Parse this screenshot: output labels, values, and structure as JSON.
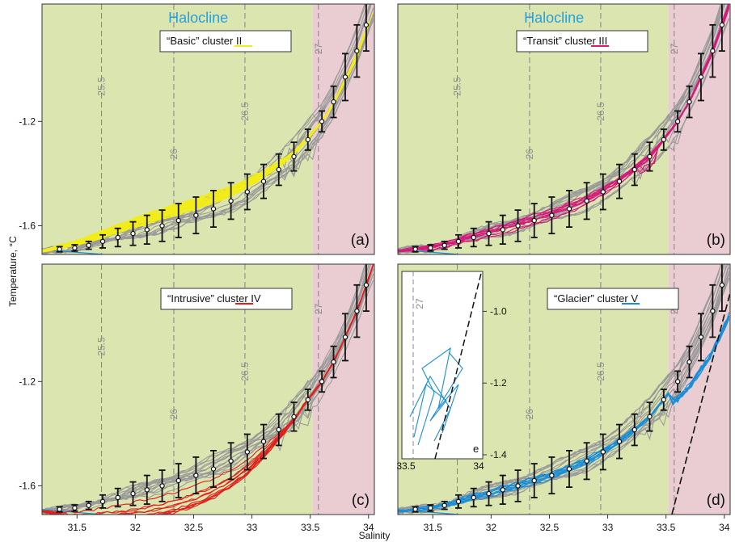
{
  "figure": {
    "xlabel": "Salinity",
    "ylabel": "Temperature, °C",
    "panel_titles": [
      "Halocline",
      "Halocline"
    ],
    "panel_tags": [
      "(a)",
      "(b)",
      "(c)",
      "(d)"
    ],
    "legends": [
      "“Basic” cluster II",
      "“Transit” cluster III",
      "“Intrusive” cluster IV",
      "“Glacier” cluster V"
    ],
    "inset_tag": "e",
    "colors": {
      "halocline_bg": "#dbe5b0",
      "deep_bg": "#e9cdd3",
      "background_profiles": "#9a9a9a",
      "mean_std": "#111111",
      "basic": "#f2ec18",
      "transit": "#d8197a",
      "intrusive": "#e0201c",
      "glacier": "#1a8fd8",
      "titles": "#2aa0d8"
    }
  },
  "chart_data": [
    {
      "type": "line",
      "panel": "(a)",
      "title": "Halocline",
      "legend": "“Basic” cluster II",
      "xlabel": "Salinity",
      "ylabel": "Temperature, °C",
      "xlim": [
        31.2,
        34.05
      ],
      "ylim": [
        -1.71,
        -0.75
      ],
      "xticks": [],
      "yticks": [
        -1.2,
        -1.6
      ],
      "highlight_color": "#f2ec18",
      "isopycnals": [
        "25.5",
        "26",
        "26.5",
        "27"
      ],
      "mean_profile": {
        "x": [
          31.35,
          31.48,
          31.6,
          31.72,
          31.85,
          31.98,
          32.1,
          32.23,
          32.37,
          32.52,
          32.67,
          32.82,
          32.96,
          33.1,
          33.23,
          33.36,
          33.48,
          33.6,
          33.7,
          33.8,
          33.9,
          33.98
        ],
        "y": [
          -1.69,
          -1.685,
          -1.675,
          -1.66,
          -1.645,
          -1.63,
          -1.615,
          -1.6,
          -1.58,
          -1.56,
          -1.535,
          -1.505,
          -1.47,
          -1.43,
          -1.385,
          -1.335,
          -1.27,
          -1.2,
          -1.125,
          -1.03,
          -0.93,
          -0.83
        ],
        "std": [
          0.01,
          0.012,
          0.015,
          0.025,
          0.035,
          0.045,
          0.055,
          0.06,
          0.065,
          0.07,
          0.07,
          0.07,
          0.068,
          0.065,
          0.06,
          0.055,
          0.04,
          0.04,
          0.06,
          0.09,
          0.1,
          0.1
        ]
      }
    },
    {
      "type": "line",
      "panel": "(b)",
      "title": "Halocline",
      "legend": "“Transit” cluster III",
      "xlabel": "Salinity",
      "ylabel": "Temperature, °C",
      "xlim": [
        31.2,
        34.05
      ],
      "ylim": [
        -1.71,
        -0.75
      ],
      "xticks": [],
      "yticks": [],
      "highlight_color": "#d8197a",
      "isopycnals": [
        "25.5",
        "26",
        "26.5",
        "27"
      ],
      "mean_profile": {
        "x": [
          31.35,
          31.48,
          31.6,
          31.72,
          31.85,
          31.98,
          32.1,
          32.23,
          32.37,
          32.52,
          32.67,
          32.82,
          32.96,
          33.1,
          33.23,
          33.36,
          33.48,
          33.6,
          33.7,
          33.8,
          33.9,
          33.98
        ],
        "y": [
          -1.69,
          -1.685,
          -1.675,
          -1.66,
          -1.645,
          -1.63,
          -1.615,
          -1.6,
          -1.58,
          -1.56,
          -1.535,
          -1.505,
          -1.47,
          -1.43,
          -1.385,
          -1.335,
          -1.27,
          -1.2,
          -1.125,
          -1.03,
          -0.93,
          -0.83
        ],
        "std": [
          0.01,
          0.012,
          0.015,
          0.025,
          0.035,
          0.045,
          0.055,
          0.06,
          0.065,
          0.07,
          0.07,
          0.07,
          0.068,
          0.065,
          0.06,
          0.055,
          0.04,
          0.04,
          0.06,
          0.09,
          0.1,
          0.1
        ]
      }
    },
    {
      "type": "line",
      "panel": "(c)",
      "legend": "“Intrusive” cluster IV",
      "xlabel": "Salinity",
      "ylabel": "Temperature, °C",
      "xlim": [
        31.2,
        34.05
      ],
      "ylim": [
        -1.71,
        -0.75
      ],
      "xticks": [
        31.5,
        32,
        32.5,
        33,
        33.5,
        34
      ],
      "yticks": [
        -1.2,
        -1.6
      ],
      "highlight_color": "#e0201c",
      "isopycnals": [
        "25.5",
        "26",
        "26.5",
        "27"
      ],
      "mean_profile": {
        "x": [
          31.35,
          31.48,
          31.6,
          31.72,
          31.85,
          31.98,
          32.1,
          32.23,
          32.37,
          32.52,
          32.67,
          32.82,
          32.96,
          33.1,
          33.23,
          33.36,
          33.48,
          33.6,
          33.7,
          33.8,
          33.9,
          33.98
        ],
        "y": [
          -1.69,
          -1.685,
          -1.675,
          -1.66,
          -1.645,
          -1.63,
          -1.615,
          -1.6,
          -1.58,
          -1.56,
          -1.535,
          -1.505,
          -1.47,
          -1.43,
          -1.385,
          -1.335,
          -1.27,
          -1.2,
          -1.125,
          -1.03,
          -0.93,
          -0.83
        ],
        "std": [
          0.01,
          0.012,
          0.015,
          0.025,
          0.035,
          0.045,
          0.055,
          0.06,
          0.065,
          0.07,
          0.07,
          0.07,
          0.068,
          0.065,
          0.06,
          0.055,
          0.04,
          0.04,
          0.06,
          0.09,
          0.1,
          0.1
        ]
      }
    },
    {
      "type": "line",
      "panel": "(d)",
      "legend": "“Glacier” cluster V",
      "xlabel": "Salinity",
      "ylabel": "Temperature, °C",
      "xlim": [
        31.2,
        34.05
      ],
      "ylim": [
        -1.71,
        -0.75
      ],
      "xticks": [
        31.5,
        32,
        32.5,
        33,
        33.5,
        34
      ],
      "xtick_labels": [
        "31.5",
        "32",
        "32.5",
        "33",
        "33.5",
        "34"
      ],
      "yticks": [],
      "highlight_color": "#1a8fd8",
      "isopycnals": [
        "25.5",
        "26",
        "26.5",
        "27"
      ],
      "mean_profile": {
        "x": [
          31.35,
          31.48,
          31.6,
          31.72,
          31.85,
          31.98,
          32.1,
          32.23,
          32.37,
          32.52,
          32.67,
          32.82,
          32.96,
          33.1,
          33.23,
          33.36,
          33.48,
          33.6,
          33.7,
          33.8,
          33.9,
          33.98
        ],
        "y": [
          -1.69,
          -1.685,
          -1.675,
          -1.66,
          -1.645,
          -1.63,
          -1.615,
          -1.6,
          -1.58,
          -1.56,
          -1.535,
          -1.505,
          -1.47,
          -1.43,
          -1.385,
          -1.335,
          -1.27,
          -1.2,
          -1.125,
          -1.03,
          -0.93,
          -0.83
        ],
        "std": [
          0.01,
          0.012,
          0.015,
          0.025,
          0.035,
          0.045,
          0.055,
          0.06,
          0.065,
          0.07,
          0.07,
          0.07,
          0.068,
          0.065,
          0.06,
          0.055,
          0.04,
          0.04,
          0.06,
          0.09,
          0.1,
          0.1
        ]
      },
      "inset": {
        "tag": "e",
        "xlim": [
          33.5,
          34.0
        ],
        "ylim": [
          -1.4,
          -0.9
        ],
        "xticks": [
          33.5,
          34
        ],
        "yticks": [
          -1.0,
          -1.2,
          -1.4
        ],
        "ytick_labels": [
          "-1.0",
          "-1.2",
          "-1.4"
        ],
        "isopycnal": "27"
      }
    }
  ]
}
